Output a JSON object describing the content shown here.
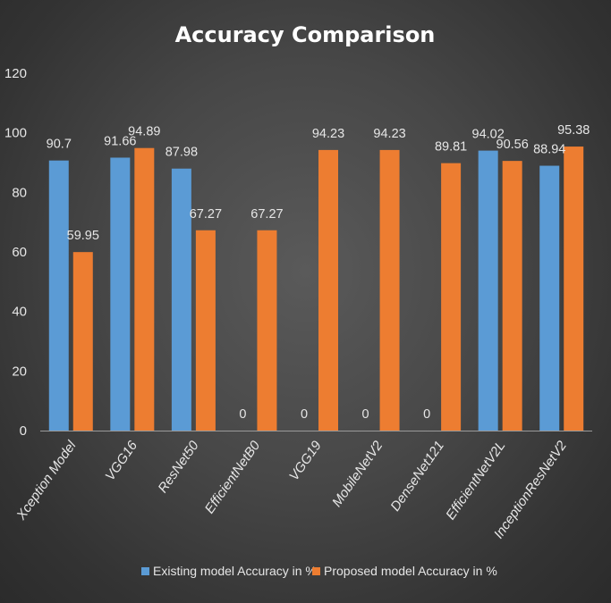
{
  "chart_data": {
    "type": "bar",
    "title": "Accuracy Comparison",
    "categories": [
      "Xception Model",
      "VGG16",
      "ResNet50",
      "EfficientNetB0",
      "VGG19",
      "MobileNetV2",
      "DenseNet121",
      "EfficientNetV2L",
      "InceptionResNetV2"
    ],
    "series": [
      {
        "name": "Existing model Accuracy in %",
        "values": [
          90.7,
          91.66,
          87.98,
          0,
          0,
          0,
          0,
          94.02,
          88.94
        ],
        "labels": [
          "90.7",
          "91.66",
          "87.98",
          "0",
          "0",
          "0",
          "0",
          "94.02",
          "88.94"
        ],
        "color": "#5b9bd5"
      },
      {
        "name": "Proposed model Accuracy in %",
        "values": [
          59.95,
          94.89,
          67.27,
          67.27,
          94.23,
          94.23,
          89.81,
          90.56,
          95.38
        ],
        "labels": [
          "59.95",
          "94.89",
          "67.27",
          "67.27",
          "94.23",
          "94.23",
          "89.81",
          "90.56",
          "95.38"
        ],
        "color": "#ed7d31"
      }
    ],
    "ylim": [
      0,
      120
    ],
    "yticks": [
      0,
      20,
      40,
      60,
      80,
      100,
      120
    ],
    "xlabel": "",
    "ylabel": "",
    "grid": false,
    "legend_position": "bottom"
  }
}
